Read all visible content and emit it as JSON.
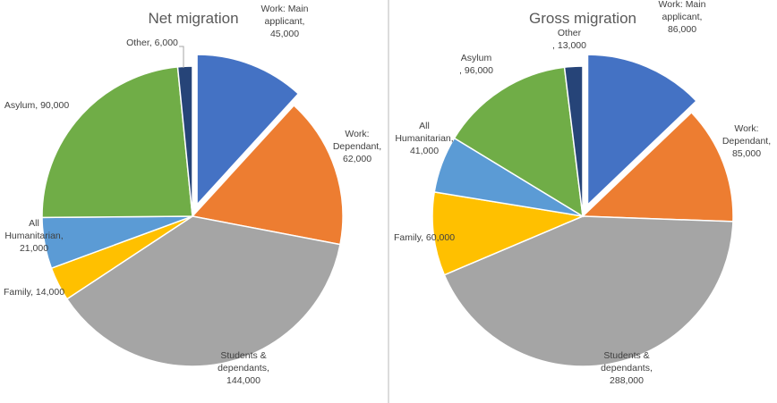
{
  "chart_data": [
    {
      "type": "pie",
      "title": "Net migration",
      "slices": [
        {
          "name": "Work: Main applicant",
          "value": 45000,
          "label": [
            "Work: Main",
            "applicant,",
            "45,000"
          ],
          "color": "#4472C4",
          "exploded": true
        },
        {
          "name": "Work: Dependant",
          "value": 62000,
          "label": [
            "Work:",
            "Dependant,",
            "62,000"
          ],
          "color": "#ED7D31",
          "exploded": false
        },
        {
          "name": "Students & dependants",
          "value": 144000,
          "label": [
            "Students &",
            "dependants,",
            "144,000"
          ],
          "color": "#A5A5A5",
          "exploded": false
        },
        {
          "name": "Family",
          "value": 14000,
          "label": [
            "Family, 14,000"
          ],
          "color": "#FFC000",
          "exploded": false
        },
        {
          "name": "All Humanitarian",
          "value": 21000,
          "label": [
            "All",
            "Humanitarian,",
            "21,000"
          ],
          "color": "#5B9BD5",
          "exploded": false
        },
        {
          "name": "Asylum",
          "value": 90000,
          "label": [
            "Asylum, 90,000"
          ],
          "color": "#70AD47",
          "exploded": false
        },
        {
          "name": "Other",
          "value": 6000,
          "label": [
            "Other, 6,000"
          ],
          "color": "#264478",
          "exploded": false
        }
      ]
    },
    {
      "type": "pie",
      "title": "Gross migration",
      "slices": [
        {
          "name": "Work: Main applicant",
          "value": 86000,
          "label": [
            "Work: Main",
            "applicant,",
            "86,000"
          ],
          "color": "#4472C4",
          "exploded": true
        },
        {
          "name": "Work: Dependant",
          "value": 85000,
          "label": [
            "Work:",
            "Dependant,",
            "85,000"
          ],
          "color": "#ED7D31",
          "exploded": false
        },
        {
          "name": "Students & dependants",
          "value": 288000,
          "label": [
            "Students &",
            "dependants,",
            "288,000"
          ],
          "color": "#A5A5A5",
          "exploded": false
        },
        {
          "name": "Family",
          "value": 60000,
          "label": [
            "Family, 60,000"
          ],
          "color": "#FFC000",
          "exploded": false
        },
        {
          "name": "All Humanitarian",
          "value": 41000,
          "label": [
            "All",
            "Humanitarian,",
            "41,000"
          ],
          "color": "#5B9BD5",
          "exploded": false
        },
        {
          "name": "Asylum",
          "value": 96000,
          "label": [
            "Asylum",
            ", 96,000"
          ],
          "color": "#70AD47",
          "exploded": false
        },
        {
          "name": "Other",
          "value": 13000,
          "label": [
            "Other",
            ", 13,000"
          ],
          "color": "#264478",
          "exploded": false
        }
      ]
    }
  ]
}
